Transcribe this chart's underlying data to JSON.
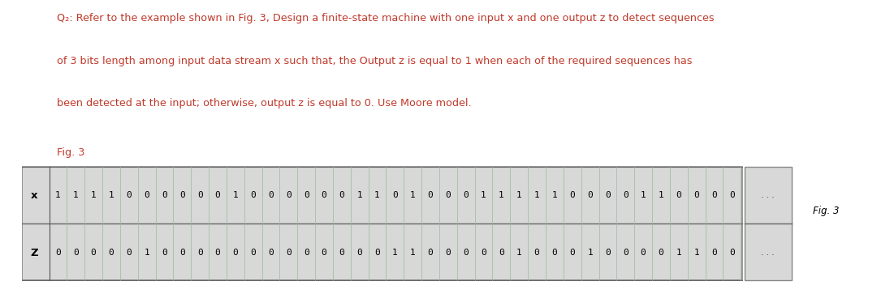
{
  "title_line1": "Q₂: Refer to the example shown in Fig. 3, Design a finite-state machine with one input x and one output z to detect sequences",
  "title_line2": "of 3 bits length among input data stream x such that, the Output z is equal to 1 when each of the required sequences has",
  "title_line3": "been detected at the input; otherwise, output z is equal to 0. Use Moore model.",
  "fig_label": "Fig. 3",
  "fig_label2": "Fig. 3",
  "x_label": "x",
  "z_label": "Z",
  "x_sequence": "1 1 1 1 0 0 0 0 0 0 1 0 0 0 0 0 0 1 1 0 1 0 0 0 1 1 1 1 1 0 0 0 0 1 1 0 0 0 0",
  "z_sequence": "0 0 0 0 0 1 0 0 0 0 0 0 0 0 0 0 0 0 0 1 1 0 0 0 0 0 1 0 0 0 1 0 0 0 0 1 1 0 0",
  "text_color": "#c0392b",
  "table_bg": "#d8d8d8",
  "table_border": "#888888",
  "cell_border": "#99bb99",
  "dots_color": "#333333",
  "fig3_color": "#333333"
}
